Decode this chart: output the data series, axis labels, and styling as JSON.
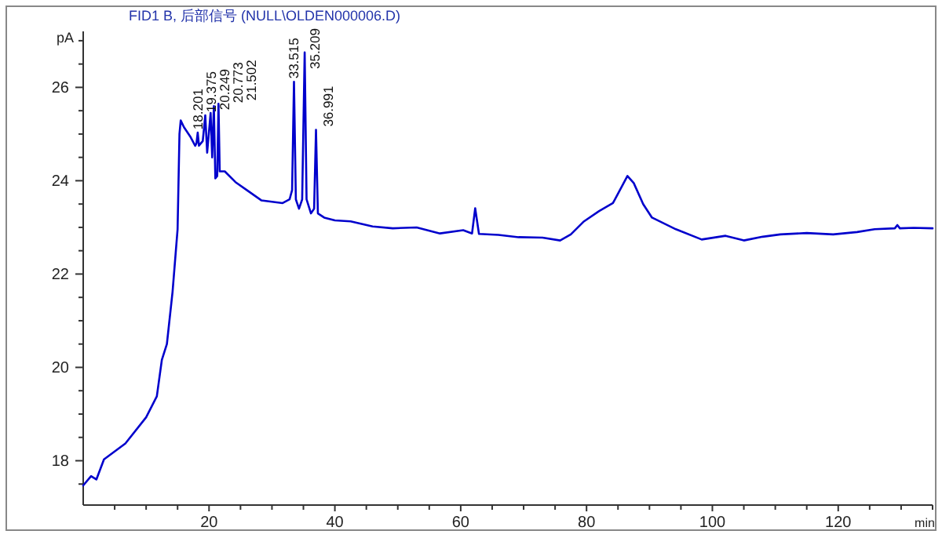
{
  "chart_data": {
    "type": "line",
    "title": "FID1 B, 后部信号 (NULL\\OLDEN000006.D)",
    "xlabel": "min",
    "ylabel": "pA",
    "x": [
      0,
      1.25,
      2.1,
      3.3,
      6.7,
      10,
      11.7,
      12.5,
      13.3,
      14.2,
      15,
      15.3,
      15.5,
      16,
      17,
      17.8,
      18.0,
      18.2,
      18.4,
      19.0,
      19.4,
      19.7,
      20.25,
      20.5,
      20.77,
      21.0,
      21.3,
      21.5,
      21.7,
      22.5,
      24.2,
      26,
      28.3,
      30,
      31.7,
      32.8,
      33.2,
      33.5,
      33.8,
      34.3,
      34.8,
      35.2,
      35.5,
      36.2,
      36.7,
      37.0,
      37.3,
      38.3,
      40,
      42.5,
      46,
      49.2,
      53,
      56.7,
      60.4,
      61.8,
      62.3,
      62.9,
      66,
      69.2,
      73,
      75.8,
      77.5,
      79.6,
      82,
      84.2,
      86.5,
      87.5,
      89,
      90.4,
      94.2,
      98.3,
      102.1,
      105,
      108,
      110.8,
      115,
      119.2,
      123,
      125.8,
      129,
      129.4,
      129.8,
      132,
      135
    ],
    "series": [
      {
        "color": "#0000cc",
        "values": [
          17.47,
          17.67,
          17.6,
          18.03,
          18.37,
          18.93,
          19.38,
          20.16,
          20.5,
          21.62,
          22.96,
          25.0,
          25.29,
          25.15,
          24.95,
          24.75,
          24.8,
          25.03,
          24.75,
          24.85,
          25.4,
          24.6,
          25.45,
          24.5,
          25.6,
          24.05,
          24.1,
          25.65,
          24.2,
          24.2,
          23.97,
          23.8,
          23.58,
          23.55,
          23.52,
          23.6,
          23.8,
          26.12,
          23.6,
          23.4,
          23.6,
          26.75,
          23.6,
          23.3,
          23.4,
          25.09,
          23.3,
          23.21,
          23.15,
          23.13,
          23.02,
          22.98,
          23.0,
          22.87,
          22.94,
          22.87,
          23.41,
          22.86,
          22.84,
          22.79,
          22.78,
          22.72,
          22.85,
          23.13,
          23.35,
          23.52,
          24.1,
          23.95,
          23.5,
          23.21,
          22.96,
          22.74,
          22.82,
          22.72,
          22.8,
          22.85,
          22.88,
          22.85,
          22.9,
          22.96,
          22.98,
          23.05,
          22.98,
          22.99,
          22.98
        ]
      }
    ],
    "xlim": [
      0,
      135
    ],
    "ylim": [
      17.05,
      27.2
    ],
    "xticks": [
      {
        "value": 5,
        "label": null
      },
      {
        "value": 10,
        "label": null
      },
      {
        "value": 15,
        "label": null
      },
      20,
      {
        "value": 25,
        "label": null
      },
      {
        "value": 30,
        "label": null
      },
      {
        "value": 35,
        "label": null
      },
      40,
      {
        "value": 45,
        "label": null
      },
      {
        "value": 50,
        "label": null
      },
      {
        "value": 55,
        "label": null
      },
      60,
      {
        "value": 65,
        "label": null
      },
      {
        "value": 70,
        "label": null
      },
      {
        "value": 75,
        "label": null
      },
      80,
      {
        "value": 85,
        "label": null
      },
      {
        "value": 90,
        "label": null
      },
      {
        "value": 95,
        "label": null
      },
      100,
      {
        "value": 105,
        "label": null
      },
      {
        "value": 110,
        "label": null
      },
      {
        "value": 115,
        "label": null
      },
      120,
      {
        "value": 125,
        "label": null
      },
      {
        "value": 130,
        "label": null
      },
      {
        "value": 135,
        "label": null
      }
    ],
    "yticks": [
      {
        "value": 17.5,
        "label": null
      },
      18,
      {
        "value": 18.5,
        "label": null
      },
      {
        "value": 19,
        "label": null
      },
      {
        "value": 19.5,
        "label": null
      },
      20,
      {
        "value": 20.5,
        "label": null
      },
      {
        "value": 21,
        "label": null
      },
      {
        "value": 21.5,
        "label": null
      },
      22,
      {
        "value": 22.5,
        "label": null
      },
      {
        "value": 23,
        "label": null
      },
      {
        "value": 23.5,
        "label": null
      },
      24,
      {
        "value": 24.5,
        "label": null
      },
      {
        "value": 25,
        "label": null
      },
      {
        "value": 25.5,
        "label": null
      },
      26,
      {
        "value": 26.5,
        "label": null
      },
      {
        "value": 27,
        "label": null
      }
    ],
    "annotations": [
      {
        "text": "18.201",
        "x": 18.2,
        "y": 25.03
      },
      {
        "text": "19.375",
        "x": 19.4,
        "y": 25.4
      },
      {
        "text": "20.249",
        "x": 20.25,
        "y": 25.45
      },
      {
        "text": "20.773",
        "x": 20.77,
        "y": 25.6
      },
      {
        "text": "21.502",
        "x": 21.5,
        "y": 25.65
      },
      {
        "text": "33.515",
        "x": 33.5,
        "y": 26.12
      },
      {
        "text": "35.209",
        "x": 35.2,
        "y": 26.75
      },
      {
        "text": "36.991",
        "x": 37.0,
        "y": 25.09
      }
    ]
  }
}
